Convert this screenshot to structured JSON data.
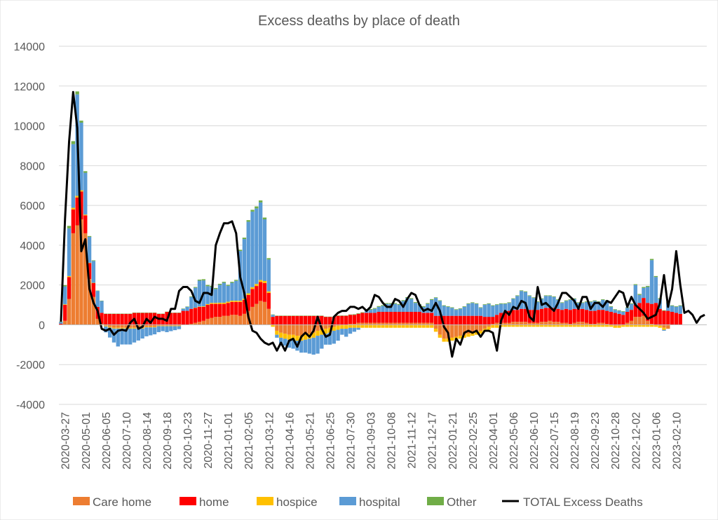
{
  "chart_data": {
    "type": "bar",
    "stacked": true,
    "title": "Excess deaths by place of death",
    "xlabel": "",
    "ylabel": "",
    "ylim": [
      -4000,
      14000
    ],
    "yticks": [
      -4000,
      -2000,
      0,
      2000,
      4000,
      6000,
      8000,
      10000,
      12000,
      14000
    ],
    "grid": true,
    "legend_position": "bottom",
    "x_first": "2020-03-20",
    "x_step_days": 7,
    "x_tick_labels": [
      "2020-03-27",
      "2020-05-01",
      "2020-06-05",
      "2020-07-10",
      "2020-08-14",
      "2020-09-18",
      "2020-10-23",
      "2020-11-27",
      "2021-01-01",
      "2021-02-05",
      "2021-03-12",
      "2021-04-16",
      "2021-05-21",
      "2021-06-25",
      "2021-07-30",
      "2021-09-03",
      "2021-10-08",
      "2021-11-12",
      "2021-12-17",
      "2022-01-21",
      "2022-02-25",
      "2022-04-01",
      "2022-05-06",
      "2022-06-10",
      "2022-07-15",
      "2022-08-19",
      "2022-09-23",
      "2022-10-28",
      "2022-12-02",
      "2023-01-06",
      "2023-02-10"
    ],
    "colors": {
      "care_home": "#ed7d31",
      "home": "#ff0000",
      "hospice": "#ffc000",
      "hospital": "#5b9bd5",
      "other": "#70ad47",
      "total": "#000000"
    },
    "series": [
      {
        "name": "Care home",
        "key": "care_home",
        "values": [
          0,
          200,
          1300,
          4600,
          5000,
          5300,
          4600,
          2300,
          1400,
          300,
          50,
          -50,
          -100,
          -150,
          -150,
          -150,
          -150,
          -150,
          -150,
          -150,
          -150,
          -100,
          -100,
          -100,
          -50,
          -50,
          -50,
          -50,
          -50,
          -50,
          0,
          0,
          50,
          100,
          150,
          200,
          300,
          350,
          400,
          400,
          450,
          450,
          500,
          500,
          450,
          550,
          700,
          900,
          1050,
          1200,
          1150,
          800,
          0,
          -300,
          -400,
          -450,
          -500,
          -500,
          -550,
          -550,
          -500,
          -450,
          -400,
          -300,
          -250,
          -200,
          -150,
          -100,
          -50,
          0,
          0,
          50,
          50,
          100,
          100,
          100,
          100,
          100,
          100,
          100,
          100,
          100,
          100,
          100,
          100,
          100,
          100,
          100,
          100,
          100,
          100,
          100,
          -200,
          -500,
          -700,
          -700,
          -650,
          -600,
          -550,
          -500,
          -450,
          -400,
          -350,
          -300,
          -200,
          -100,
          50,
          100,
          100,
          100,
          100,
          150,
          150,
          150,
          150,
          100,
          100,
          100,
          150,
          150,
          200,
          150,
          150,
          100,
          100,
          50,
          100,
          150,
          150,
          100,
          50,
          50,
          100,
          100,
          50,
          0,
          -50,
          -50,
          0,
          100,
          200,
          400,
          400,
          450,
          200,
          50,
          0,
          -50,
          -150,
          -200
        ]
      },
      {
        "name": "home",
        "key": "home",
        "values": [
          50,
          800,
          1100,
          1200,
          1400,
          1400,
          900,
          800,
          700,
          600,
          550,
          550,
          550,
          550,
          550,
          550,
          550,
          550,
          600,
          600,
          600,
          600,
          600,
          600,
          550,
          550,
          650,
          600,
          600,
          600,
          700,
          700,
          750,
          750,
          750,
          700,
          700,
          700,
          650,
          650,
          600,
          650,
          650,
          650,
          700,
          700,
          800,
          900,
          900,
          950,
          950,
          800,
          400,
          450,
          450,
          450,
          450,
          450,
          450,
          450,
          450,
          450,
          450,
          450,
          450,
          400,
          400,
          400,
          450,
          450,
          450,
          450,
          450,
          450,
          500,
          500,
          500,
          500,
          550,
          550,
          550,
          550,
          550,
          550,
          550,
          550,
          550,
          550,
          550,
          500,
          500,
          500,
          450,
          450,
          450,
          450,
          450,
          450,
          450,
          450,
          450,
          450,
          450,
          450,
          400,
          400,
          350,
          400,
          500,
          550,
          600,
          600,
          600,
          650,
          650,
          650,
          650,
          650,
          650,
          700,
          650,
          700,
          650,
          650,
          700,
          700,
          700,
          650,
          650,
          650,
          650,
          650,
          650,
          650,
          650,
          650,
          600,
          550,
          500,
          550,
          550,
          600,
          700,
          900,
          900,
          1000,
          1100,
          800,
          700,
          700,
          650,
          600,
          550
        ]
      },
      {
        "name": "hospice",
        "key": "hospice",
        "values": [
          0,
          30,
          50,
          80,
          80,
          60,
          40,
          20,
          10,
          0,
          -20,
          -30,
          -40,
          -40,
          -40,
          -40,
          -40,
          -40,
          -40,
          -40,
          -40,
          -30,
          -30,
          -30,
          -20,
          -20,
          -20,
          -20,
          -20,
          -20,
          -20,
          -10,
          0,
          10,
          20,
          30,
          40,
          50,
          50,
          60,
          60,
          60,
          60,
          60,
          60,
          60,
          80,
          90,
          100,
          100,
          100,
          80,
          -100,
          -200,
          -250,
          -250,
          -250,
          -250,
          -250,
          -250,
          -250,
          -250,
          -250,
          -250,
          -250,
          -250,
          -250,
          -200,
          -200,
          -200,
          -200,
          -150,
          -150,
          -150,
          -150,
          -150,
          -150,
          -150,
          -150,
          -150,
          -150,
          -150,
          -150,
          -150,
          -150,
          -150,
          -150,
          -150,
          -150,
          -150,
          -150,
          -150,
          -150,
          -150,
          -150,
          -150,
          -150,
          -150,
          -150,
          -150,
          -150,
          -150,
          -150,
          -150,
          -150,
          -150,
          -150,
          -150,
          -100,
          -100,
          -100,
          -100,
          -100,
          -100,
          -100,
          -100,
          -100,
          -100,
          -100,
          -100,
          -100,
          -100,
          -100,
          -100,
          -100,
          -100,
          -100,
          -100,
          -100,
          -100,
          -100,
          -100,
          -100,
          -100,
          -100,
          -100,
          -100,
          -100,
          -100,
          -100,
          -100,
          -100,
          -100,
          -100,
          -100,
          -100,
          -100,
          -100,
          -100
        ]
      },
      {
        "name": "hospital",
        "key": "hospital",
        "values": [
          100,
          900,
          2400,
          3200,
          5100,
          3400,
          2100,
          1300,
          1100,
          800,
          600,
          -300,
          -500,
          -700,
          -900,
          -800,
          -800,
          -800,
          -700,
          -600,
          -500,
          -450,
          -400,
          -350,
          -300,
          -250,
          -300,
          -250,
          -200,
          -150,
          100,
          200,
          600,
          1000,
          1300,
          1300,
          900,
          800,
          700,
          900,
          1000,
          800,
          900,
          1000,
          2500,
          3000,
          3600,
          3800,
          3800,
          3900,
          3100,
          1600,
          100,
          -150,
          -300,
          -350,
          -400,
          -450,
          -500,
          -600,
          -650,
          -750,
          -850,
          -900,
          -700,
          -550,
          -600,
          -650,
          -550,
          -300,
          -400,
          -300,
          -200,
          -100,
          0,
          150,
          150,
          200,
          250,
          300,
          400,
          400,
          400,
          350,
          550,
          700,
          650,
          450,
          350,
          300,
          450,
          650,
          900,
          750,
          500,
          450,
          400,
          300,
          350,
          450,
          600,
          650,
          600,
          400,
          600,
          650,
          550,
          500,
          450,
          400,
          400,
          550,
          700,
          900,
          850,
          700,
          600,
          400,
          500,
          600,
          600,
          550,
          450,
          350,
          400,
          500,
          500,
          300,
          300,
          400,
          450,
          500,
          400,
          500,
          500,
          250,
          150,
          150,
          150,
          200,
          300,
          1000,
          400,
          500,
          800,
          2200,
          1300,
          500,
          -50,
          400,
          300,
          300,
          400
        ]
      },
      {
        "name": "Other",
        "key": "other",
        "values": [
          10,
          60,
          120,
          150,
          150,
          100,
          80,
          40,
          30,
          20,
          10,
          10,
          10,
          10,
          10,
          10,
          10,
          10,
          10,
          10,
          10,
          10,
          10,
          10,
          10,
          10,
          10,
          10,
          10,
          10,
          20,
          20,
          30,
          40,
          50,
          60,
          60,
          60,
          50,
          50,
          50,
          50,
          50,
          50,
          60,
          70,
          80,
          90,
          100,
          100,
          90,
          70,
          20,
          10,
          10,
          10,
          10,
          10,
          10,
          10,
          10,
          10,
          10,
          10,
          10,
          10,
          10,
          10,
          20,
          20,
          20,
          20,
          30,
          30,
          30,
          30,
          40,
          40,
          40,
          40,
          40,
          40,
          40,
          40,
          40,
          40,
          40,
          40,
          40,
          40,
          40,
          40,
          30,
          30,
          30,
          30,
          30,
          30,
          30,
          30,
          30,
          30,
          30,
          30,
          30,
          30,
          30,
          30,
          30,
          30,
          30,
          30,
          30,
          30,
          30,
          30,
          30,
          30,
          30,
          30,
          30,
          30,
          30,
          30,
          30,
          30,
          30,
          30,
          30,
          30,
          30,
          30,
          30,
          30,
          30,
          30,
          30,
          30,
          30,
          30,
          30,
          40,
          50,
          50,
          50,
          60,
          50,
          40,
          30,
          30,
          30,
          30,
          30
        ]
      },
      {
        "name": "TOTAL Excess Deaths",
        "key": "total",
        "type": "line",
        "values": [
          160,
          5300,
          9200,
          11700,
          9900,
          3700,
          4300,
          1800,
          1100,
          700,
          -200,
          -300,
          -200,
          -500,
          -300,
          -250,
          -300,
          100,
          300,
          -200,
          -100,
          300,
          100,
          400,
          300,
          300,
          200,
          800,
          800,
          1700,
          1900,
          1900,
          1700,
          1200,
          1100,
          1600,
          1600,
          1500,
          4000,
          4600,
          5100,
          5100,
          5200,
          4600,
          2400,
          1600,
          400,
          -300,
          -400,
          -700,
          -900,
          -1000,
          -900,
          -1300,
          -900,
          -1300,
          -800,
          -700,
          -1100,
          -600,
          -400,
          -600,
          -300,
          400,
          -200,
          -600,
          -500,
          400,
          600,
          700,
          700,
          900,
          900,
          800,
          900,
          700,
          900,
          1500,
          1400,
          1100,
          900,
          900,
          1300,
          1200,
          900,
          1300,
          1600,
          1500,
          1000,
          700,
          800,
          700,
          1100,
          700,
          -100,
          -400,
          -1600,
          -700,
          -1000,
          -400,
          -300,
          -400,
          -300,
          -600,
          -300,
          -300,
          -400,
          -1300,
          200,
          700,
          500,
          900,
          800,
          1200,
          1100,
          400,
          200,
          1900,
          1000,
          1100,
          900,
          700,
          1100,
          1600,
          1600,
          1400,
          1200,
          800,
          1400,
          1400,
          800,
          1100,
          1100,
          900,
          1200,
          1100,
          1400,
          1700,
          1600,
          900,
          1400,
          1000,
          800,
          600,
          300,
          400,
          500,
          1100,
          2500,
          900,
          1800,
          3700,
          2000,
          600,
          700,
          500,
          100,
          400,
          500
        ]
      }
    ]
  }
}
